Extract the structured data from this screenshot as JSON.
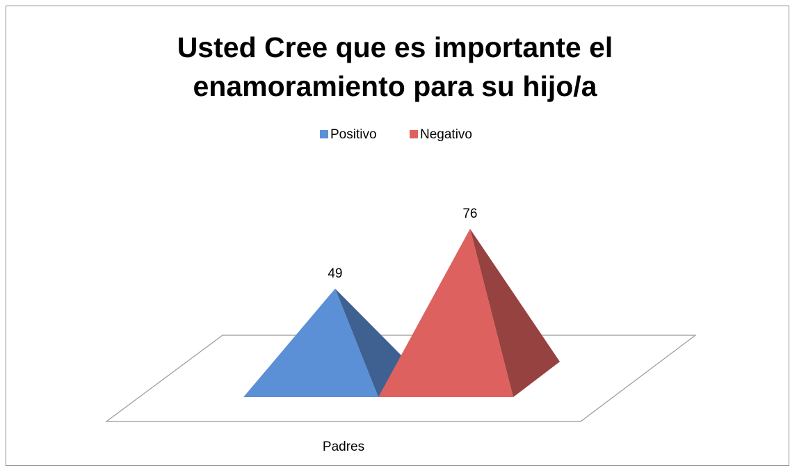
{
  "chart_data": {
    "type": "bar",
    "style": "3d-pyramid",
    "title": "Usted Cree que es importante el enamoramiento para su hijo/a",
    "categories": [
      "Padres"
    ],
    "series": [
      {
        "name": "Positivo",
        "color": "#5b8fd6",
        "values": [
          49
        ]
      },
      {
        "name": "Negativo",
        "color": "#dd615f",
        "values": [
          76
        ]
      }
    ],
    "legend": "top"
  }
}
